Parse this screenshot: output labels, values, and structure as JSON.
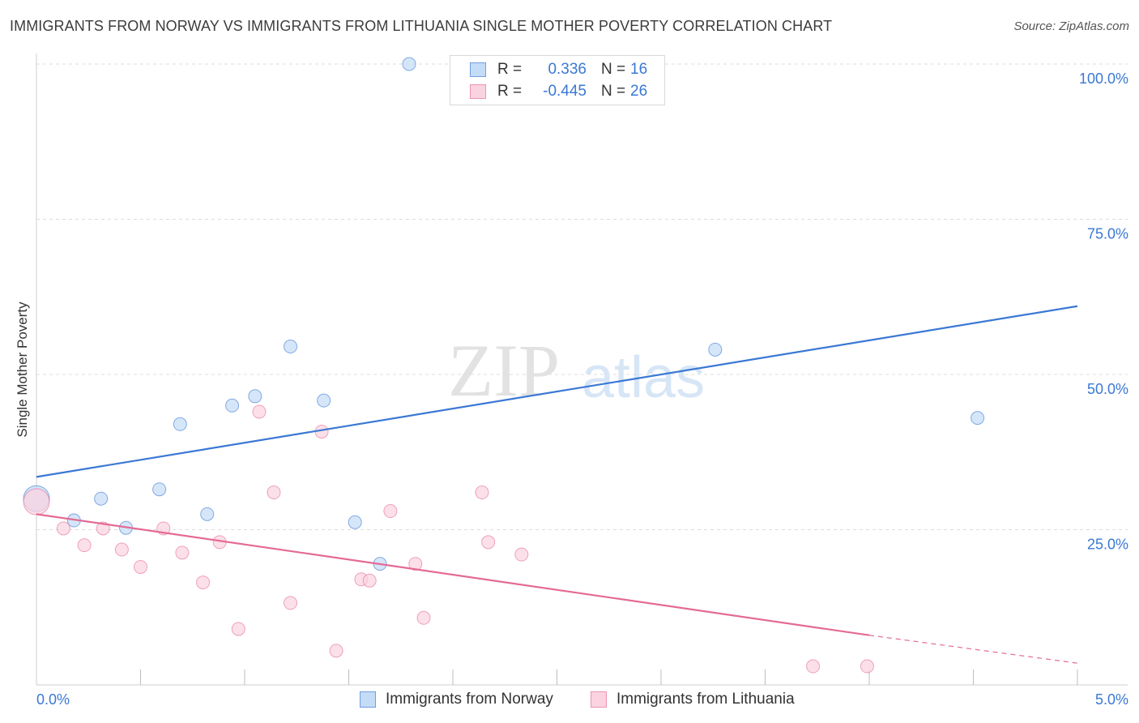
{
  "header": {
    "title": "IMMIGRANTS FROM NORWAY VS IMMIGRANTS FROM LITHUANIA SINGLE MOTHER POVERTY CORRELATION CHART",
    "source": "Source: ZipAtlas.com"
  },
  "watermark": {
    "part1": "ZIP",
    "part2": "atlas"
  },
  "legend_top": [
    {
      "r_label": "R =",
      "r_value": "0.336",
      "n_label": "N =",
      "n_value": "16",
      "color": "#a9c8f0",
      "border": "#6f9fe0"
    },
    {
      "r_label": "R =",
      "r_value": "-0.445",
      "n_label": "N =",
      "n_value": "26",
      "color": "#f8c5d6",
      "border": "#ec93b1"
    }
  ],
  "legend_bottom": [
    {
      "label": "Immigrants from Norway",
      "color": "#c5dcf7",
      "border": "#6f9fe0"
    },
    {
      "label": "Immigrants from Lithuania",
      "color": "#fbd3e0",
      "border": "#ec93b1"
    }
  ],
  "chart_data": {
    "type": "scatter",
    "title": "IMMIGRANTS FROM NORWAY VS IMMIGRANTS FROM LITHUANIA SINGLE MOTHER POVERTY CORRELATION CHART",
    "xlabel": "",
    "ylabel": "Single Mother Poverty",
    "xlim": [
      0,
      5.0
    ],
    "ylim": [
      0,
      100
    ],
    "x_tick_labels": [
      "0.0%",
      "5.0%"
    ],
    "y_ticks": [
      25,
      50,
      75,
      100
    ],
    "y_tick_labels": [
      "25.0%",
      "50.0%",
      "75.0%",
      "100.0%"
    ],
    "grid": true,
    "series": [
      {
        "name": "Immigrants from Norway",
        "color": "#3a78d4",
        "fill": "#c5dcf7",
        "points": [
          {
            "x": 0.0,
            "y": 30.0,
            "big": true
          },
          {
            "x": 0.18,
            "y": 26.5
          },
          {
            "x": 0.31,
            "y": 30.0
          },
          {
            "x": 0.43,
            "y": 25.3
          },
          {
            "x": 0.59,
            "y": 31.5
          },
          {
            "x": 0.69,
            "y": 42.0
          },
          {
            "x": 0.82,
            "y": 27.5
          },
          {
            "x": 0.94,
            "y": 45.0
          },
          {
            "x": 1.05,
            "y": 46.5
          },
          {
            "x": 1.22,
            "y": 54.5
          },
          {
            "x": 1.38,
            "y": 45.8
          },
          {
            "x": 1.53,
            "y": 26.2
          },
          {
            "x": 1.65,
            "y": 19.5
          },
          {
            "x": 1.79,
            "y": 100.0
          },
          {
            "x": 3.26,
            "y": 54.0
          },
          {
            "x": 4.52,
            "y": 43.0
          }
        ],
        "trend": {
          "x": [
            0.0,
            5.0
          ],
          "y": [
            33.5,
            61.0
          ]
        }
      },
      {
        "name": "Immigrants from Lithuania",
        "color": "#e46a95",
        "fill": "#fbd3e0",
        "points": [
          {
            "x": 0.13,
            "y": 25.2
          },
          {
            "x": 0.23,
            "y": 22.5
          },
          {
            "x": 0.32,
            "y": 25.2
          },
          {
            "x": 0.41,
            "y": 21.8
          },
          {
            "x": 0.5,
            "y": 19.0
          },
          {
            "x": 0.61,
            "y": 25.2
          },
          {
            "x": 0.7,
            "y": 21.3
          },
          {
            "x": 0.8,
            "y": 16.5
          },
          {
            "x": 0.88,
            "y": 23.0
          },
          {
            "x": 0.97,
            "y": 9.0
          },
          {
            "x": 1.07,
            "y": 44.0
          },
          {
            "x": 1.14,
            "y": 31.0
          },
          {
            "x": 1.22,
            "y": 13.2
          },
          {
            "x": 1.37,
            "y": 40.8
          },
          {
            "x": 1.44,
            "y": 5.5
          },
          {
            "x": 1.56,
            "y": 17.0
          },
          {
            "x": 1.6,
            "y": 16.8
          },
          {
            "x": 1.7,
            "y": 28.0
          },
          {
            "x": 1.82,
            "y": 19.5
          },
          {
            "x": 1.86,
            "y": 10.8
          },
          {
            "x": 2.14,
            "y": 31.0
          },
          {
            "x": 2.17,
            "y": 23.0
          },
          {
            "x": 2.33,
            "y": 21.0
          },
          {
            "x": 3.73,
            "y": 3.0
          },
          {
            "x": 3.99,
            "y": 3.0
          },
          {
            "x": 0.0,
            "y": 29.5,
            "big": true
          }
        ],
        "trend": {
          "x": [
            0.0,
            4.0
          ],
          "y": [
            27.5,
            8.0
          ]
        },
        "trend_dashed": {
          "x": [
            4.0,
            5.0
          ],
          "y": [
            8.0,
            3.5
          ]
        }
      }
    ]
  }
}
